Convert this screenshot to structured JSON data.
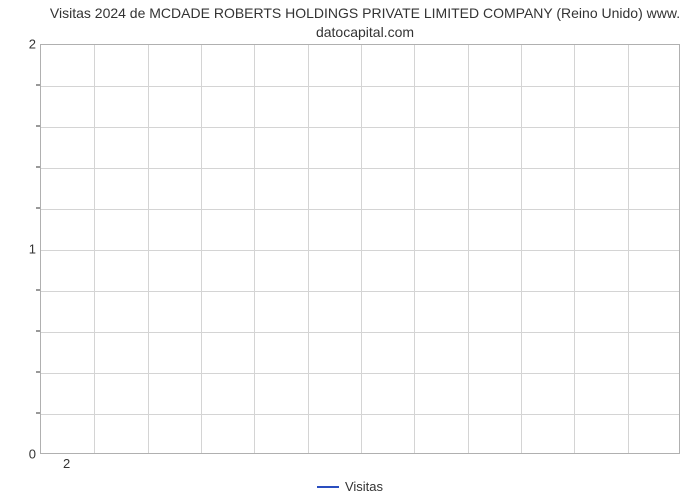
{
  "chart": {
    "type": "line",
    "title_line1": "Visitas 2024 de MCDADE ROBERTS HOLDINGS PRIVATE LIMITED COMPANY (Reino Unido) www.",
    "title_line2": "datocapital.com",
    "title_fontsize": 14,
    "title_color": "#333333",
    "background_color": "#ffffff",
    "plot_border_color": "#b0b0b0",
    "grid_color": "#d4d4d4",
    "axis_text_color": "#333333",
    "axis_fontsize": 13,
    "ylim": [
      0,
      2
    ],
    "y_major_ticks": [
      0,
      1,
      2
    ],
    "y_minor_tick_count": 4,
    "x_major_ticks": [
      2
    ],
    "x_grid_count": 12,
    "y_grid_count": 10,
    "series": [
      {
        "name": "Visitas",
        "color": "#2a4ebf",
        "line_width": 2,
        "data": []
      }
    ],
    "legend": {
      "position": "bottom-center",
      "label": "Visitas",
      "swatch_color": "#2a4ebf"
    }
  }
}
